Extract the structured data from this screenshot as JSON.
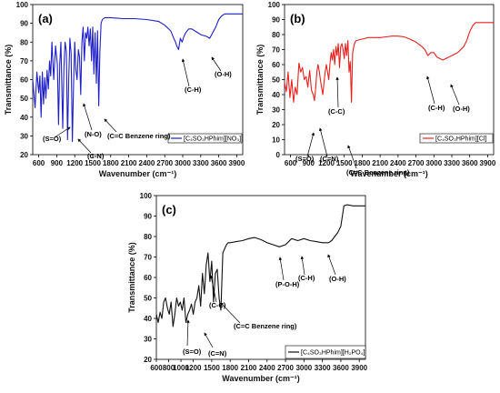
{
  "chart_data": [
    {
      "type": "line",
      "panel_label": "(a)",
      "xlabel": "Wavenumber (cm⁻¹)",
      "ylabel": "Transmittance (%)",
      "xlim": [
        500,
        4000
      ],
      "ylim": [
        20,
        100
      ],
      "xticks": [
        600,
        900,
        1200,
        1500,
        1800,
        2100,
        2400,
        2700,
        3000,
        3300,
        3600,
        3900
      ],
      "yticks": [
        20,
        30,
        40,
        50,
        60,
        70,
        80,
        90,
        100
      ],
      "grid": false,
      "legend_position": "bottom-right",
      "series": [
        {
          "name": "[C₄SO₃HPhim][NO₃]",
          "color": "#1f1fc8",
          "x": [
            500,
            540,
            570,
            600,
            620,
            640,
            660,
            680,
            700,
            720,
            740,
            760,
            780,
            800,
            820,
            850,
            880,
            910,
            930,
            950,
            970,
            1000,
            1020,
            1040,
            1060,
            1080,
            1100,
            1120,
            1140,
            1160,
            1180,
            1200,
            1220,
            1240,
            1260,
            1280,
            1300,
            1320,
            1340,
            1360,
            1380,
            1400,
            1420,
            1440,
            1460,
            1480,
            1500,
            1520,
            1540,
            1560,
            1580,
            1600,
            1620,
            1640,
            1660,
            1680,
            1700,
            1750,
            1800,
            2000,
            2200,
            2400,
            2600,
            2700,
            2800,
            2850,
            2880,
            2900,
            2930,
            2960,
            2990,
            3020,
            3050,
            3100,
            3150,
            3200,
            3300,
            3400,
            3450,
            3500,
            3550,
            3600,
            3650,
            3700,
            3800,
            3900,
            4000
          ],
          "y": [
            60,
            45,
            64,
            53,
            62,
            40,
            64,
            47,
            61,
            50,
            65,
            55,
            70,
            62,
            80,
            60,
            78,
            68,
            36,
            68,
            80,
            34,
            66,
            80,
            75,
            28,
            60,
            82,
            74,
            27,
            57,
            80,
            65,
            60,
            76,
            72,
            52,
            80,
            88,
            70,
            85,
            82,
            88,
            78,
            87,
            70,
            88,
            63,
            85,
            58,
            86,
            46,
            75,
            90,
            92,
            92.5,
            93,
            93,
            93,
            92.5,
            92.5,
            92,
            91,
            89,
            86,
            82,
            80,
            78,
            76,
            82,
            80,
            83,
            85,
            87,
            87,
            86,
            84,
            83,
            82,
            85,
            88,
            92,
            94,
            95,
            95,
            95,
            95
          ]
        }
      ],
      "annotations": [
        "(S=O)",
        "(C-N)",
        "(N-O)",
        "(C=C Benzene ring)",
        "(C-H)",
        "(O-H)"
      ]
    },
    {
      "type": "line",
      "panel_label": "(b)",
      "xlabel": "Wavenumber (cm⁻¹)",
      "ylabel": "Transmittance (%)",
      "xlim": [
        500,
        4000
      ],
      "ylim": [
        0,
        100
      ],
      "xticks": [
        600,
        900,
        1200,
        1500,
        1800,
        2100,
        2400,
        2700,
        3000,
        3300,
        3600,
        3900
      ],
      "yticks": [
        0,
        10,
        20,
        30,
        40,
        50,
        60,
        70,
        80,
        90,
        100
      ],
      "grid": false,
      "legend_position": "bottom-right",
      "series": [
        {
          "name": "[C₄SO₃HPhim][Cl]",
          "color": "#e8211e",
          "x": [
            500,
            530,
            560,
            590,
            620,
            650,
            680,
            710,
            740,
            770,
            800,
            830,
            860,
            890,
            920,
            950,
            980,
            1000,
            1020,
            1040,
            1060,
            1080,
            1100,
            1120,
            1140,
            1160,
            1180,
            1200,
            1220,
            1240,
            1260,
            1280,
            1300,
            1320,
            1340,
            1360,
            1380,
            1400,
            1420,
            1440,
            1460,
            1480,
            1500,
            1520,
            1540,
            1560,
            1580,
            1600,
            1620,
            1640,
            1660,
            1680,
            1700,
            1800,
            1900,
            2000,
            2100,
            2200,
            2300,
            2400,
            2500,
            2600,
            2700,
            2800,
            2850,
            2900,
            2950,
            3000,
            3050,
            3100,
            3150,
            3200,
            3300,
            3400,
            3500,
            3550,
            3600,
            3650,
            3700,
            3800,
            3900,
            4000
          ],
          "y": [
            48,
            42,
            55,
            38,
            50,
            35,
            45,
            40,
            61,
            55,
            58,
            50,
            52,
            45,
            56,
            43,
            40,
            36,
            44,
            55,
            60,
            56,
            50,
            45,
            40,
            48,
            55,
            60,
            55,
            50,
            60,
            68,
            63,
            70,
            60,
            72,
            66,
            74,
            58,
            72,
            74,
            70,
            64,
            74,
            66,
            76,
            55,
            62,
            35,
            68,
            72,
            75,
            76,
            77,
            78,
            78,
            78,
            78.5,
            79,
            79,
            78.5,
            77,
            75,
            72,
            70,
            66,
            68,
            68,
            65,
            64,
            63,
            64,
            66,
            68,
            72,
            76,
            82,
            86,
            88,
            88,
            88,
            88
          ]
        }
      ],
      "annotations": [
        "(S=O)",
        "(C=N)",
        "(C-C)",
        "(C=C Benzene ring)",
        "(C-H)",
        "(O-H)"
      ]
    },
    {
      "type": "line",
      "panel_label": "(c)",
      "xlabel": "Wavenumber (cm⁻¹)",
      "ylabel": "Transmittance (%)",
      "xlim": [
        600,
        4000
      ],
      "ylim": [
        20,
        100
      ],
      "xticks": [
        600,
        800,
        1000,
        1200,
        1500,
        1800,
        2100,
        2400,
        2700,
        3000,
        3300,
        3600,
        3900
      ],
      "yticks": [
        20,
        30,
        40,
        50,
        60,
        70,
        80,
        90,
        100
      ],
      "grid": false,
      "legend_position": "bottom-right",
      "series": [
        {
          "name": "[C₄SO₃HPhim][H₂PO₄]",
          "color": "#111111",
          "x": [
            600,
            630,
            660,
            690,
            720,
            750,
            780,
            810,
            840,
            870,
            900,
            930,
            960,
            990,
            1020,
            1050,
            1080,
            1110,
            1140,
            1170,
            1200,
            1230,
            1260,
            1290,
            1320,
            1350,
            1380,
            1410,
            1440,
            1470,
            1500,
            1530,
            1560,
            1590,
            1620,
            1650,
            1680,
            1710,
            1740,
            1770,
            1800,
            1900,
            2000,
            2100,
            2200,
            2300,
            2400,
            2500,
            2600,
            2700,
            2800,
            2900,
            3000,
            3100,
            3200,
            3300,
            3400,
            3450,
            3500,
            3550,
            3600,
            3650,
            3700,
            3800,
            3900,
            4000
          ],
          "y": [
            42,
            38,
            43,
            40,
            48,
            50,
            45,
            42,
            48,
            36,
            42,
            50,
            46,
            48,
            44,
            50,
            38,
            42,
            44,
            47,
            42,
            48,
            50,
            56,
            46,
            62,
            52,
            66,
            72,
            58,
            68,
            48,
            62,
            64,
            50,
            44,
            72,
            74,
            76,
            77,
            77,
            77.5,
            78,
            79,
            79.5,
            78.5,
            77,
            76,
            75,
            76,
            79,
            78,
            79,
            78,
            77.5,
            77,
            77,
            78,
            80,
            82,
            85,
            95,
            95.5,
            95,
            95,
            95
          ]
        }
      ],
      "annotations": [
        "(S=O)",
        "(C=N)",
        "(C-C)",
        "(C=C Benzene ring)",
        "(P-O-H)",
        "(C-H)",
        "(O-H)"
      ]
    }
  ]
}
